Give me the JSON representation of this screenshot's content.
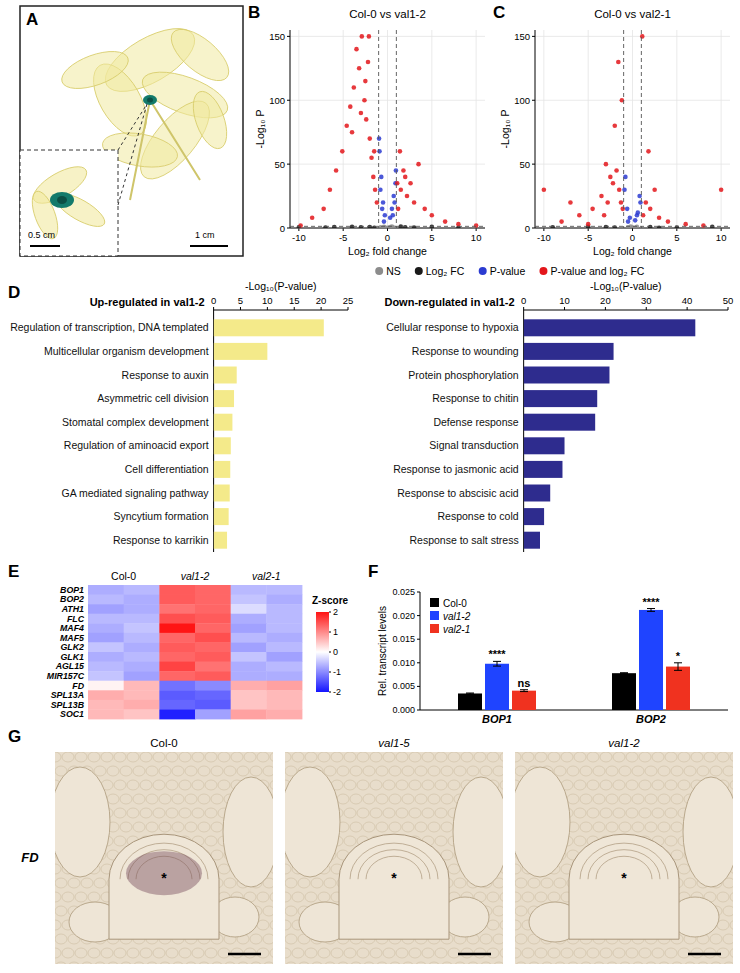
{
  "chart_data": [
    {
      "type": "scatter",
      "panel": "B",
      "title": "Col-0 vs val1-2",
      "x_label": "Log₂ fold change",
      "y_label": "-Log₁₀ P",
      "xlim": [
        -11,
        11
      ],
      "xticks": [
        -10,
        -5,
        0,
        5,
        10
      ],
      "ylim": [
        0,
        155
      ],
      "yticks": [
        0,
        50,
        100,
        150
      ],
      "grid": true,
      "legend": "bottom",
      "xlines": [
        -1,
        1
      ],
      "ylines": [
        1.3
      ],
      "series": [
        {
          "name": "NS",
          "color": "#8c8c8c",
          "x": [
            -0.8,
            -0.4,
            0,
            0.3,
            0.7,
            -0.2,
            0.5
          ],
          "values": [
            0.5,
            1,
            0.2,
            0.8,
            0.4,
            0.1,
            1.2
          ]
        },
        {
          "name": "Log₂ FC",
          "color": "#1a1a1a",
          "x": [
            -10,
            -7,
            -4,
            -2,
            -1.5,
            2,
            3,
            5,
            8,
            1.5,
            -3,
            -6
          ],
          "values": [
            0.5,
            0.3,
            1,
            0.8,
            0.2,
            0.6,
            0.4,
            0.9,
            0.2,
            1.1,
            0.5,
            0.7
          ]
        },
        {
          "name": "P-value",
          "color": "#2b3bd1",
          "x": [
            -0.9,
            -0.7,
            -0.5,
            -0.3,
            -0.8,
            -0.6,
            0.3,
            0.5,
            0.7,
            0.9,
            -0.4,
            0.6,
            0.8,
            -0.95,
            0.95
          ],
          "values": [
            60,
            40,
            20,
            10,
            30,
            15,
            8,
            15,
            25,
            35,
            5,
            10,
            20,
            70,
            45
          ]
        },
        {
          "name": "P-value and log₂ FC",
          "color": "#e3161b",
          "x": [
            -9.8,
            -8.5,
            -7.2,
            -6.5,
            -5.8,
            -5.1,
            -4.6,
            -4.2,
            -3.8,
            -3.5,
            -3.2,
            -2.9,
            -2.6,
            -2.4,
            -2.2,
            -2.0,
            -1.8,
            -1.6,
            -1.4,
            -1.2,
            -3.0,
            -2.5,
            -4.0,
            -1.5,
            -2.1,
            1.2,
            1.5,
            1.8,
            2.2,
            2.6,
            3.0,
            3.5,
            4.2,
            5.0,
            6.5,
            8.0,
            10.0,
            1.4,
            2.0,
            1.1
          ],
          "values": [
            2,
            8,
            15,
            30,
            45,
            60,
            80,
            95,
            110,
            140,
            125,
            150,
            100,
            85,
            130,
            70,
            55,
            40,
            30,
            20,
            90,
            115,
            75,
            60,
            150,
            15,
            30,
            45,
            25,
            35,
            20,
            50,
            15,
            10,
            5,
            3,
            2,
            60,
            40,
            35
          ]
        }
      ]
    },
    {
      "type": "scatter",
      "panel": "C",
      "title": "Col-0 vs val2-1",
      "x_label": "Log₂ fold change",
      "y_label": "-Log₁₀ P",
      "xlim": [
        -11,
        11
      ],
      "xticks": [
        -10,
        -5,
        0,
        5,
        10
      ],
      "ylim": [
        0,
        155
      ],
      "yticks": [
        0,
        50,
        100,
        150
      ],
      "grid": true,
      "xlines": [
        -1,
        1
      ],
      "ylines": [
        1.3
      ],
      "series": [
        {
          "color": "#8c8c8c",
          "x": [
            -0.5,
            0,
            0.5,
            -0.2,
            0.3
          ],
          "values": [
            0.6,
            0.3,
            1,
            1.2,
            0.2
          ]
        },
        {
          "color": "#1a1a1a",
          "x": [
            -9,
            -5,
            -2,
            2,
            5,
            9,
            -3,
            3
          ],
          "values": [
            0.5,
            1,
            0.4,
            0.7,
            0.3,
            1,
            0.8,
            0.2
          ]
        },
        {
          "color": "#2b3bd1",
          "x": [
            -0.9,
            -0.6,
            -0.3,
            0.3,
            0.6,
            0.9,
            -0.8,
            0.8,
            -0.5,
            0.5
          ],
          "values": [
            30,
            15,
            8,
            6,
            12,
            20,
            40,
            25,
            5,
            10
          ]
        },
        {
          "color": "#e3161b",
          "x": [
            -10,
            -8,
            -6,
            -4.5,
            -3.5,
            -3,
            -2.5,
            -2.2,
            -2,
            -1.8,
            -1.5,
            -1.3,
            -1.1,
            -2.8,
            -1.6,
            -3.2,
            -5,
            1.2,
            1.5,
            2,
            2.5,
            3,
            4,
            6,
            8,
            10,
            1.8,
            1.1,
            -1.2,
            -7
          ],
          "values": [
            30,
            5,
            10,
            15,
            25,
            50,
            40,
            35,
            80,
            45,
            30,
            20,
            15,
            20,
            130,
            10,
            3,
            10,
            20,
            15,
            30,
            8,
            5,
            3,
            2,
            30,
            60,
            150,
            100,
            20
          ]
        }
      ]
    },
    {
      "type": "bar",
      "orientation": "horizontal",
      "panel": "D",
      "title": "Up-regulated in val1-2",
      "x_label": "-Log₁₀(P-value)",
      "xlim": [
        0,
        25
      ],
      "xticks": [
        0,
        5,
        10,
        15,
        20,
        25
      ],
      "color": "#f4ea8a",
      "categories": [
        "Regulation of transcription, DNA templated",
        "Multicellular organism development",
        "Response to auxin",
        "Asymmetric cell division",
        "Stomatal complex development",
        "Regulation of aminoacid export",
        "Cell differentiation",
        "GA mediated signaling pathway",
        "Syncytium formation",
        "Response to karrikin"
      ],
      "values": [
        20.5,
        10,
        4.3,
        3.8,
        3.5,
        3.2,
        3.1,
        3.0,
        2.8,
        2.5
      ]
    },
    {
      "type": "bar",
      "orientation": "horizontal",
      "title": "Down-regulated in val1-2",
      "x_label": "-Log₁₀(P-value)",
      "xlim": [
        0,
        50
      ],
      "xticks": [
        0,
        10,
        20,
        30,
        40,
        50
      ],
      "color": "#2e2c8e",
      "categories": [
        "Cellular response to hypoxia",
        "Response to wounding",
        "Protein phosphorylation",
        "Response to chitin",
        "Defense response",
        "Signal transduction",
        "Response to jasmonic acid",
        "Response to abscisic acid",
        "Response to cold",
        "Response to salt stress"
      ],
      "values": [
        42,
        22,
        21,
        18,
        17.5,
        10,
        9.5,
        6.5,
        5,
        4
      ]
    },
    {
      "type": "heatmap",
      "panel": "E",
      "column_groups": [
        {
          "label": "Col-0",
          "columns": 2
        },
        {
          "label": "val1-2",
          "columns": 2
        },
        {
          "label": "val2-1",
          "columns": 2
        }
      ],
      "rows": [
        "BOP1",
        "BOP2",
        "ATH1",
        "FLC",
        "MAF4",
        "MAF5",
        "GLK2",
        "GLK1",
        "AGL15",
        "MIR157C",
        "FD",
        "SPL13A",
        "SPL13B",
        "SOC1"
      ],
      "cells": [
        [
          -0.7,
          -0.6,
          1.4,
          1.3,
          -0.6,
          -0.6
        ],
        [
          -0.6,
          -0.7,
          1.4,
          1.3,
          -0.5,
          -0.7
        ],
        [
          -0.8,
          -0.7,
          1.2,
          1.3,
          -0.3,
          -0.6
        ],
        [
          -0.6,
          -0.6,
          1.5,
          1.4,
          -0.7,
          -0.6
        ],
        [
          -0.7,
          -0.5,
          2.0,
          1.3,
          -0.8,
          -0.6
        ],
        [
          -0.8,
          -0.6,
          1.3,
          1.5,
          -0.6,
          -0.7
        ],
        [
          -0.5,
          -0.7,
          1.4,
          1.3,
          -0.8,
          -0.6
        ],
        [
          -0.7,
          -0.6,
          1.3,
          1.4,
          -0.5,
          -0.8
        ],
        [
          -0.6,
          -0.7,
          1.6,
          1.2,
          -0.7,
          -0.6
        ],
        [
          -0.5,
          -0.8,
          1.3,
          1.4,
          -0.7,
          -0.7
        ],
        [
          0.1,
          0.6,
          -1.2,
          -1.0,
          0.7,
          0.8
        ],
        [
          0.7,
          0.6,
          -1.4,
          -1.3,
          0.5,
          0.6
        ],
        [
          0.6,
          0.7,
          -1.3,
          -1.4,
          0.5,
          0.6
        ],
        [
          0.6,
          0.5,
          -1.9,
          -0.8,
          0.8,
          0.7
        ]
      ],
      "colorbar": {
        "title": "Z-score",
        "range": [
          -2,
          2
        ],
        "ticks": [
          2,
          1,
          0,
          -1,
          -2
        ]
      }
    },
    {
      "type": "bar",
      "panel": "F",
      "y_label": "Rel. transcript levels",
      "categories": [
        "BOP1",
        "BOP2"
      ],
      "ylim": [
        0,
        0.025
      ],
      "yticks": [
        {
          "value": 0,
          "label": "0.000"
        },
        {
          "value": 0.005,
          "label": "0.005"
        },
        {
          "value": 0.01,
          "label": "0.010"
        },
        {
          "value": 0.015,
          "label": "0.015"
        },
        {
          "value": 0.02,
          "label": "0.020"
        },
        {
          "value": 0.025,
          "label": "0.025"
        }
      ],
      "legend": "top-left",
      "series": [
        {
          "name": "Col-0",
          "color": "#000000",
          "values": [
            0.0035,
            0.0078
          ],
          "errors": [
            0.0001,
            0.0001
          ]
        },
        {
          "name": "val1-2",
          "color": "#1f44ff",
          "values": [
            0.0098,
            0.0212
          ],
          "errors": [
            0.0005,
            0.0003
          ],
          "significance": [
            "****",
            "****"
          ]
        },
        {
          "name": "val2-1",
          "color": "#f0321f",
          "values": [
            0.0041,
            0.0092
          ],
          "errors": [
            0.0002,
            0.0008
          ],
          "significance": [
            "ns",
            "*"
          ]
        }
      ]
    }
  ],
  "images": {
    "A": {
      "panel": "A",
      "scale_bars": [
        "0.5 cm",
        "1 cm"
      ]
    },
    "G": {
      "panel": "G",
      "row_label": "FD",
      "images": [
        {
          "title": "Col-0",
          "mark": "*"
        },
        {
          "title": "val1-5",
          "mark": "*"
        },
        {
          "title": "val1-2",
          "mark": "*"
        }
      ]
    }
  }
}
